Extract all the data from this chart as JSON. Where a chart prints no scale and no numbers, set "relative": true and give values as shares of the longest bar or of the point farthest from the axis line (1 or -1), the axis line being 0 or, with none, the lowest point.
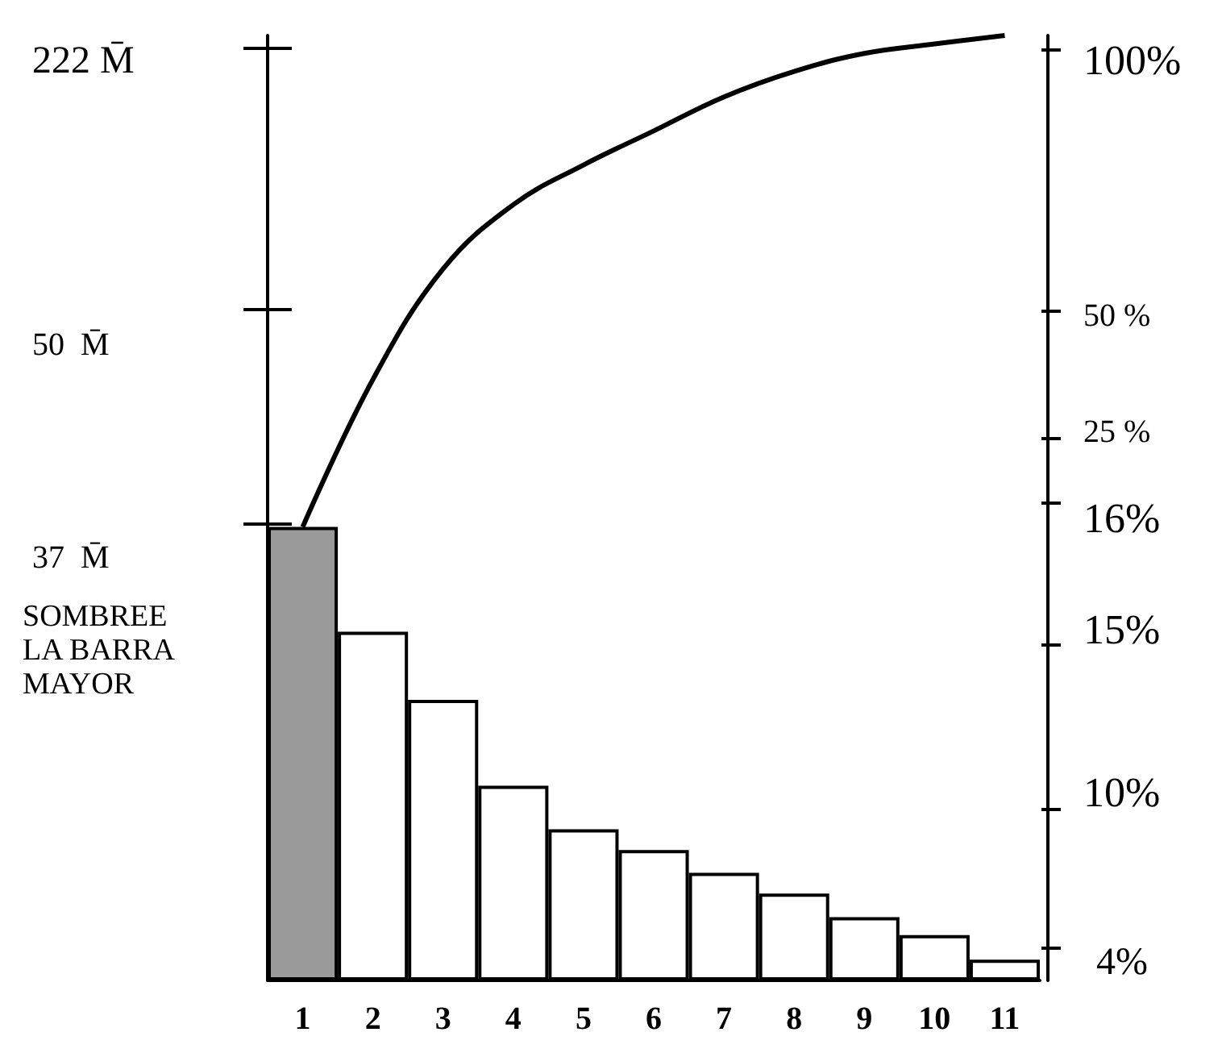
{
  "chart_data": {
    "type": "bar",
    "relative": true,
    "categories": [
      "1",
      "2",
      "3",
      "4",
      "5",
      "6",
      "7",
      "8",
      "9",
      "10",
      "11"
    ],
    "series": [
      {
        "colors": [
          "#9a9a9a",
          "#ffffff",
          "#ffffff",
          "#ffffff",
          "#ffffff",
          "#ffffff",
          "#ffffff",
          "#ffffff",
          "#ffffff",
          "#ffffff",
          "#ffffff"
        ],
        "values": [
          0.48,
          0.369,
          0.297,
          0.206,
          0.16,
          0.138,
          0.114,
          0.092,
          0.067,
          0.048,
          0.022
        ]
      },
      {
        "type": "line",
        "color": "#000000",
        "values": [
          0.48,
          0.636,
          0.753,
          0.821,
          0.863,
          0.899,
          0.935,
          0.962,
          0.981,
          0.991,
          1.0
        ]
      }
    ],
    "annotations": [
      "222 M̄",
      "50  M̄",
      "37  M̄",
      "100%",
      "50 %",
      "25 %",
      "16%",
      "15%",
      "10%",
      "4%",
      "SOMBREE LA BARRA MAYOR"
    ],
    "marker": "none",
    "line_style": "solid"
  }
}
